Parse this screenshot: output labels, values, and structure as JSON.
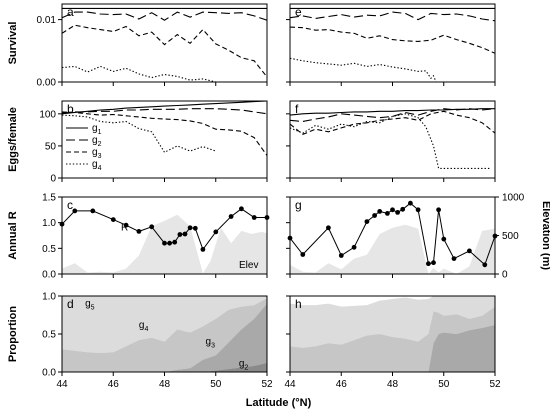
{
  "chart_data": {
    "type": "line",
    "xlabel": "Latitude (°N)",
    "xlim": [
      44,
      52
    ],
    "xticks": [
      44,
      46,
      48,
      50,
      52
    ],
    "left_column_panels": [
      "a",
      "b",
      "c",
      "d"
    ],
    "right_column_panels": [
      "e",
      "f",
      "g",
      "h"
    ],
    "rows": [
      {
        "ylabel": "Survival",
        "ylim": [
          0,
          0.0125
        ],
        "yticks": [
          {
            "v": 0,
            "label": "0.00"
          },
          {
            "v": 0.01,
            "label": "0.01"
          }
        ]
      },
      {
        "ylabel": "Eggs/female",
        "ylim": [
          0,
          120
        ],
        "yticks": [
          {
            "v": 0,
            "label": "0"
          },
          {
            "v": 50,
            "label": "50"
          },
          {
            "v": 100,
            "label": "100"
          }
        ],
        "legend": {
          "entries": [
            {
              "base": "g",
              "sub": "1",
              "dash": ""
            },
            {
              "base": "g",
              "sub": "2",
              "dash": "9,4"
            },
            {
              "base": "g",
              "sub": "3",
              "dash": "5,3"
            },
            {
              "base": "g",
              "sub": "4",
              "dash": "1.4,2"
            }
          ]
        }
      },
      {
        "ylabel": "Annual R",
        "ylim": [
          0,
          1.5
        ],
        "yticks": [
          {
            "v": 0,
            "label": "0.0"
          },
          {
            "v": 0.5,
            "label": "0.5"
          },
          {
            "v": 1,
            "label": "1.0"
          },
          {
            "v": 1.5,
            "label": "1.5"
          }
        ],
        "y2label": "Elevation (m)",
        "y2lim": [
          0,
          1000
        ],
        "y2ticks": [
          {
            "v": 0,
            "label": "0"
          },
          {
            "v": 500,
            "label": "500"
          },
          {
            "v": 1000,
            "label": "1000"
          }
        ],
        "r_label": "R",
        "elev_label": "Elev"
      },
      {
        "ylabel": "Proportion",
        "ylim": [
          0,
          1
        ],
        "yticks": [
          {
            "v": 0,
            "label": "0.0"
          },
          {
            "v": 0.5,
            "label": "0.5"
          },
          {
            "v": 1,
            "label": "1.0"
          }
        ],
        "labels": [
          {
            "base": "g",
            "sub": "5"
          },
          {
            "base": "g",
            "sub": "4"
          },
          {
            "base": "g",
            "sub": "3"
          },
          {
            "base": "g",
            "sub": "2"
          }
        ]
      }
    ],
    "left": {
      "survival": {
        "x": [
          44,
          44.5,
          45,
          45.5,
          46,
          46.5,
          47,
          47.5,
          48,
          48.5,
          49,
          49.5,
          50,
          50.5,
          51,
          51.5,
          52
        ],
        "g1": [
          0.0118,
          0.0118,
          0.0118,
          0.0118,
          0.0118,
          0.0118,
          0.0118,
          0.0118,
          0.0118,
          0.0118,
          0.0118,
          0.0118,
          0.0118,
          0.0118,
          0.0118,
          0.0118,
          0.0118
        ],
        "g2": [
          0.0103,
          0.0112,
          0.0112,
          0.0109,
          0.0108,
          0.0109,
          0.0101,
          0.0111,
          0.0099,
          0.0112,
          0.0104,
          0.0112,
          0.0111,
          0.011,
          0.0111,
          0.0106,
          0.0099
        ],
        "g3": [
          0.0078,
          0.0091,
          0.0087,
          0.0084,
          0.0081,
          0.0089,
          0.0074,
          0.008,
          0.006,
          0.0076,
          0.0062,
          0.0084,
          0.0061,
          0.0051,
          0.0039,
          0.0034,
          0.0008
        ],
        "g4_x": [
          44,
          44.5,
          45,
          45.5,
          46,
          46.5,
          47,
          47.5,
          48,
          48.5,
          49,
          49.5,
          50
        ],
        "g4": [
          0.0023,
          0.0025,
          0.0016,
          0.0025,
          0.0017,
          0.0022,
          0.0013,
          0.0007,
          0.0012,
          0.0009,
          0.0003,
          0.0005,
          0.0
        ]
      },
      "eggs": {
        "x": [
          44,
          44.5,
          45,
          45.5,
          46,
          46.5,
          47,
          47.5,
          48,
          48.5,
          49,
          49.5,
          50,
          50.5,
          51,
          51.5,
          52
        ],
        "g1": [
          100,
          102,
          104,
          106,
          107,
          109,
          110,
          111,
          112,
          113,
          114,
          115,
          116,
          117,
          118,
          119,
          120
        ],
        "g2": [
          101,
          103,
          103,
          104,
          104,
          106,
          106,
          107,
          107,
          107,
          108,
          108,
          108,
          107,
          106,
          103,
          100
        ],
        "g3": [
          103,
          102,
          100,
          98,
          99,
          97,
          95,
          93,
          92,
          91,
          89,
          85,
          76,
          75,
          73,
          63,
          35
        ],
        "g4_x": [
          44,
          44.5,
          45,
          45.5,
          46,
          46.5,
          47,
          47.5,
          48,
          48.5,
          49,
          49.5,
          50
        ],
        "g4": [
          98,
          97,
          95,
          88,
          86,
          88,
          77,
          72,
          40,
          50,
          42,
          49,
          42
        ]
      },
      "r": {
        "x": [
          44,
          44.5,
          45.2,
          46,
          46.5,
          47,
          47.5,
          48,
          48.2,
          48.4,
          48.6,
          48.8,
          49,
          49.2,
          49.5,
          50,
          50.6,
          51,
          51.5,
          52
        ],
        "values": [
          0.97,
          1.23,
          1.23,
          1.06,
          0.95,
          0.83,
          0.92,
          0.6,
          0.6,
          0.62,
          0.77,
          0.78,
          0.9,
          0.89,
          0.48,
          0.82,
          1.12,
          1.27,
          1.1,
          1.1
        ]
      },
      "elevation": {
        "x": [
          44,
          44.5,
          45,
          45.5,
          46,
          46.5,
          47,
          47.5,
          48,
          48.5,
          49,
          49.5,
          49.8,
          50.2,
          50.6,
          51,
          51.4,
          51.8,
          52
        ],
        "values": [
          70,
          140,
          20,
          30,
          20,
          70,
          240,
          620,
          690,
          770,
          620,
          10,
          170,
          600,
          400,
          560,
          520,
          550,
          530
        ]
      },
      "proportion": {
        "x": [
          44,
          44.5,
          45,
          45.5,
          46,
          46.5,
          47,
          47.5,
          48,
          48.5,
          49,
          49.5,
          50,
          50.5,
          51,
          51.5,
          52
        ],
        "g2": [
          0,
          0,
          0,
          0,
          0,
          0,
          0,
          0,
          0,
          0,
          0,
          0,
          0.02,
          0.04,
          0.06,
          0.08,
          0.12
        ],
        "g2g3": [
          0,
          0,
          0,
          0,
          0,
          0,
          0,
          0,
          0,
          0.03,
          0.05,
          0.16,
          0.22,
          0.39,
          0.56,
          0.7,
          0.9
        ],
        "g2g3g4": [
          0.3,
          0.28,
          0.26,
          0.25,
          0.26,
          0.34,
          0.42,
          0.45,
          0.4,
          0.56,
          0.52,
          0.6,
          0.7,
          0.82,
          0.86,
          0.88,
          0.97
        ],
        "total": [
          1,
          1,
          1,
          1,
          1,
          1,
          1,
          1,
          1,
          1,
          1,
          1,
          1,
          1,
          1,
          1,
          1
        ]
      }
    },
    "right": {
      "survival": {
        "x": [
          44,
          44.5,
          45,
          45.5,
          46,
          46.5,
          47,
          47.5,
          48,
          48.5,
          49,
          49.5,
          50,
          50.5,
          51,
          51.5,
          52
        ],
        "g1": [
          0.0118,
          0.0118,
          0.0118,
          0.0118,
          0.0118,
          0.0118,
          0.0118,
          0.0118,
          0.0118,
          0.0118,
          0.0118,
          0.0118,
          0.0118,
          0.0118,
          0.0118,
          0.0118,
          0.0118
        ],
        "g2": [
          0.0103,
          0.0106,
          0.0102,
          0.0105,
          0.0108,
          0.0104,
          0.0107,
          0.0106,
          0.0112,
          0.011,
          0.01,
          0.011,
          0.0108,
          0.0109,
          0.0106,
          0.0101,
          0.0098
        ],
        "g3": [
          0.0088,
          0.0087,
          0.0083,
          0.0084,
          0.008,
          0.0078,
          0.007,
          0.0074,
          0.0068,
          0.0066,
          0.0065,
          0.0067,
          0.0075,
          0.0068,
          0.0062,
          0.0055,
          0.0046
        ],
        "g4_x": [
          44,
          44.5,
          45,
          45.5,
          46,
          46.5,
          47,
          47.5,
          48,
          48.5,
          49,
          49.3,
          49.5,
          49.6,
          49.7
        ],
        "g4": [
          0.0038,
          0.0034,
          0.0031,
          0.0029,
          0.0027,
          0.003,
          0.0025,
          0.0028,
          0.0024,
          0.0021,
          0.0017,
          0.0018,
          0.0006,
          0.001,
          0.0
        ]
      },
      "eggs": {
        "x": [
          44,
          44.5,
          45,
          45.5,
          46,
          46.5,
          47,
          47.5,
          48,
          48.5,
          49,
          49.5,
          50,
          50.5,
          51,
          51.5,
          52
        ],
        "g1": [
          98,
          100,
          101,
          101,
          102,
          103,
          103,
          104,
          104,
          105,
          105,
          106,
          106,
          107,
          107,
          108,
          108
        ],
        "g2": [
          90,
          88,
          92,
          95,
          100,
          98,
          96,
          94,
          96,
          102,
          98,
          104,
          108,
          106,
          108,
          106,
          108
        ],
        "g3": [
          84,
          68,
          76,
          72,
          78,
          84,
          86,
          90,
          92,
          94,
          90,
          100,
          104,
          98,
          94,
          86,
          70
        ],
        "g4_x": [
          44,
          44.5,
          45,
          45.5,
          46,
          46.5,
          47,
          47.5,
          48,
          48.5,
          49,
          49.3,
          49.6,
          49.8,
          50,
          50.5,
          51,
          51.5,
          51.8
        ],
        "g4": [
          78,
          70,
          82,
          76,
          84,
          80,
          88,
          86,
          96,
          100,
          94,
          80,
          50,
          15,
          15,
          15,
          15,
          15,
          15
        ]
      },
      "r": {
        "x": [
          44,
          44.5,
          45.5,
          46,
          46.5,
          47,
          47.3,
          47.5,
          47.8,
          48,
          48.2,
          48.4,
          48.7,
          49,
          49.4,
          49.6,
          49.8,
          50,
          50.4,
          51,
          51.6,
          52
        ],
        "values": [
          0.7,
          0.38,
          0.9,
          0.36,
          0.52,
          1.02,
          1.14,
          1.22,
          1.18,
          1.25,
          1.2,
          1.26,
          1.38,
          1.25,
          0.2,
          0.22,
          1.25,
          0.68,
          0.3,
          0.45,
          0.18,
          0.74
        ]
      },
      "elevation": {
        "x": [
          44,
          44.5,
          45,
          45.5,
          46,
          46.5,
          47,
          47.5,
          48,
          48.5,
          49,
          49.4,
          49.6,
          49.8,
          50,
          50.5,
          51,
          51.5,
          52
        ],
        "values": [
          120,
          30,
          20,
          140,
          60,
          200,
          250,
          520,
          600,
          640,
          590,
          0,
          80,
          20,
          70,
          0,
          100,
          560,
          590
        ]
      },
      "proportion": {
        "x": [
          44,
          44.5,
          45,
          45.5,
          46,
          46.5,
          47,
          47.5,
          48,
          48.5,
          49,
          49.4,
          49.6,
          49.8,
          50,
          50.5,
          51,
          51.5,
          52
        ],
        "g2g3": [
          0,
          0,
          0,
          0,
          0,
          0,
          0,
          0,
          0,
          0,
          0,
          0,
          0.38,
          0.5,
          0.52,
          0.5,
          0.55,
          0.58,
          0.62
        ],
        "g2g3g4": [
          0.34,
          0.32,
          0.34,
          0.38,
          0.36,
          0.42,
          0.48,
          0.5,
          0.46,
          0.44,
          0.4,
          0.5,
          0.8,
          0.78,
          0.74,
          0.76,
          0.7,
          0.74,
          0.86
        ],
        "total": [
          0.9,
          0.88,
          0.88,
          0.9,
          0.86,
          0.87,
          0.88,
          0.94,
          0.96,
          0.98,
          0.95,
          0.96,
          1,
          1,
          1,
          1,
          1,
          1,
          1
        ]
      }
    },
    "colors": {
      "series": "#000000",
      "marker": "#000000",
      "elevation_fill": "#e6e6e6",
      "g5_fill": "#dcdcdc",
      "g4_fill": "#c6c6c6",
      "g3_fill": "#a9a9a9",
      "g2_fill": "#8a8a8a"
    }
  }
}
